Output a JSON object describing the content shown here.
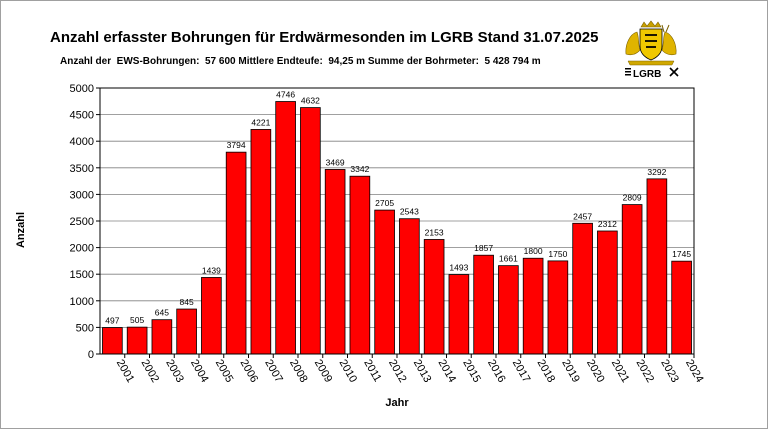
{
  "chart_data": {
    "type": "bar",
    "title": "Anzahl erfasster Bohrungen für Erdwärmesonden im LGRB Stand 31.07.2025",
    "subtitle": "Anzahl der  EWS-Bohrungen:  57 600 Mittlere Endteufe:  94,25 m Summe der Bohrmeter:  5 428 794 m",
    "xlabel": "Jahr",
    "ylabel": "Anzahl",
    "categories": [
      "2001",
      "2002",
      "2003",
      "2004",
      "2005",
      "2006",
      "2007",
      "2008",
      "2009",
      "2010",
      "2011",
      "2012",
      "2013",
      "2014",
      "2015",
      "2016",
      "2017",
      "2018",
      "2019",
      "2020",
      "2021",
      "2022",
      "2023",
      "2024"
    ],
    "values": [
      497,
      505,
      645,
      845,
      1439,
      3794,
      4221,
      4746,
      4632,
      3469,
      3342,
      2705,
      2543,
      2153,
      1493,
      1857,
      1661,
      1800,
      1750,
      2457,
      2312,
      2809,
      3292,
      1745
    ],
    "ylim": [
      0,
      5000
    ],
    "yticks": [
      0,
      500,
      1000,
      1500,
      2000,
      2500,
      3000,
      3500,
      4000,
      4500,
      5000
    ],
    "grid": true,
    "legend": "none",
    "bar_color": "#ff0000",
    "bar_edge_color": "#000000"
  },
  "logo": {
    "text": "LGRB",
    "description": "coat-of-arms-with-lgrb-wordmark"
  }
}
